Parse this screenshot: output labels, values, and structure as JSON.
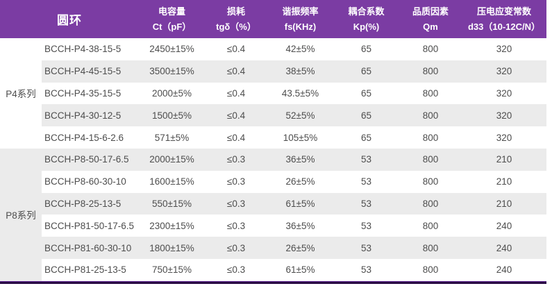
{
  "page": {
    "accent_color": "#7b3ca3",
    "stripe_color": "#ebebeb",
    "bottom_bar_color": "#2b0a45",
    "body_text_color": "#4d4d4d"
  },
  "table": {
    "ring_header": "圆环",
    "columns": [
      {
        "line1": "电容量",
        "line2": "Ct（pF）"
      },
      {
        "line1": "损耗",
        "line2": "tgδ（%）"
      },
      {
        "line1": "谐振频率",
        "line2": "fs(KHz)"
      },
      {
        "line1": "耦合系数",
        "line2": "Kp(%)"
      },
      {
        "line1": "品质因素",
        "line2": "Qm"
      },
      {
        "line1": "压电应变常数",
        "line2": "d33（10-12C/N）"
      }
    ],
    "groups": [
      {
        "label": "P4系列"
      },
      {
        "label": "P8系列"
      }
    ],
    "rows": [
      {
        "model": "BCCH-P4-38-15-5",
        "ct": "2450±15%",
        "tg": "≤0.4",
        "fs": "42±5%",
        "kp": "65",
        "qm": "800",
        "d33": "320"
      },
      {
        "model": "BCCH-P4-45-15-5",
        "ct": "3500±15%",
        "tg": "≤0.4",
        "fs": "38±5%",
        "kp": "65",
        "qm": "800",
        "d33": "320"
      },
      {
        "model": "BCCH-P4-35-15-5",
        "ct": "2000±5%",
        "tg": "≤0.4",
        "fs": "43.5±5%",
        "kp": "65",
        "qm": "800",
        "d33": "320"
      },
      {
        "model": "BCCH-P4-30-12-5",
        "ct": "1500±5%",
        "tg": "≤0.4",
        "fs": "52±5%",
        "kp": "65",
        "qm": "800",
        "d33": "320"
      },
      {
        "model": "BCCH-P4-15-6-2.6",
        "ct": "571±5%",
        "tg": "≤0.4",
        "fs": "105±5%",
        "kp": "65",
        "qm": "800",
        "d33": "320"
      },
      {
        "model": "BCCH-P8-50-17-6.5",
        "ct": "2000±15%",
        "tg": "≤0.3",
        "fs": "36±5%",
        "kp": "53",
        "qm": "800",
        "d33": "210"
      },
      {
        "model": "BCCH-P8-60-30-10",
        "ct": "1600±15%",
        "tg": "≤0.3",
        "fs": "26±5%",
        "kp": "53",
        "qm": "800",
        "d33": "210"
      },
      {
        "model": "BCCH-P8-25-13-5",
        "ct": "550±15%",
        "tg": "≤0.3",
        "fs": "61±5%",
        "kp": "53",
        "qm": "800",
        "d33": "210"
      },
      {
        "model": "BCCH-P81-50-17-6.5",
        "ct": "2300±15%",
        "tg": "≤0.3",
        "fs": "36±5%",
        "kp": "53",
        "qm": "800",
        "d33": "240"
      },
      {
        "model": "BCCH-P81-60-30-10",
        "ct": "1800±15%",
        "tg": "≤0.3",
        "fs": "26±5%",
        "kp": "53",
        "qm": "800",
        "d33": "240"
      },
      {
        "model": "BCCH-P81-25-13-5",
        "ct": "750±15%",
        "tg": "≤0.3",
        "fs": "61±5%",
        "kp": "53",
        "qm": "800",
        "d33": "240"
      }
    ]
  }
}
